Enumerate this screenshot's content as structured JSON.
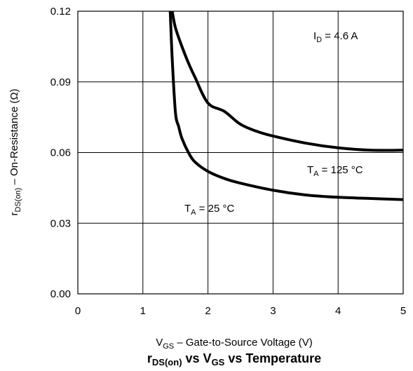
{
  "chart_data": {
    "type": "line",
    "title": {
      "p1": "r",
      "p1sub": "DS(on)",
      "p2": " vs V",
      "p2sub": "GS",
      "p3": " vs Temperature"
    },
    "xlabel": {
      "p1": "V",
      "p1sub": "GS",
      "p2": " – Gate-to-Source Voltage (V)"
    },
    "ylabel": {
      "p1": "r",
      "p1sub": "DS(on)",
      "p2": " – On-Resistance (Ω)"
    },
    "xlim": [
      0,
      5
    ],
    "ylim": [
      0,
      0.12
    ],
    "x_ticks": [
      "0",
      "1",
      "2",
      "3",
      "4",
      "5"
    ],
    "y_ticks": [
      "0.00",
      "0.03",
      "0.06",
      "0.09",
      "0.12"
    ],
    "grid": true,
    "annotations": {
      "id": {
        "p1": "I",
        "p1sub": "D",
        "p2": " = 4.6 A"
      },
      "t125": {
        "p1": "T",
        "p1sub": "A",
        "p2": " = 125 °C"
      },
      "t25": {
        "p1": "T",
        "p1sub": "A",
        "p2": " = 25 °C"
      }
    },
    "series": [
      {
        "key": "t125",
        "x": [
          1.45,
          1.5,
          1.6,
          1.7,
          1.8,
          2.0,
          2.25,
          2.5,
          2.75,
          3.0,
          3.5,
          4.0,
          4.5,
          5.0
        ],
        "y": [
          0.12,
          0.113,
          0.105,
          0.098,
          0.092,
          0.081,
          0.0775,
          0.072,
          0.069,
          0.067,
          0.064,
          0.062,
          0.061,
          0.061
        ]
      },
      {
        "key": "t25",
        "x": [
          1.42,
          1.45,
          1.5,
          1.55,
          1.6,
          1.7,
          1.8,
          2.0,
          2.25,
          2.5,
          3.0,
          3.5,
          4.0,
          4.5,
          5.0
        ],
        "y": [
          0.12,
          0.1,
          0.077,
          0.071,
          0.066,
          0.06,
          0.056,
          0.052,
          0.049,
          0.047,
          0.044,
          0.042,
          0.041,
          0.0405,
          0.04
        ]
      }
    ],
    "line_color": "#000000",
    "grid_color": "#000000"
  }
}
